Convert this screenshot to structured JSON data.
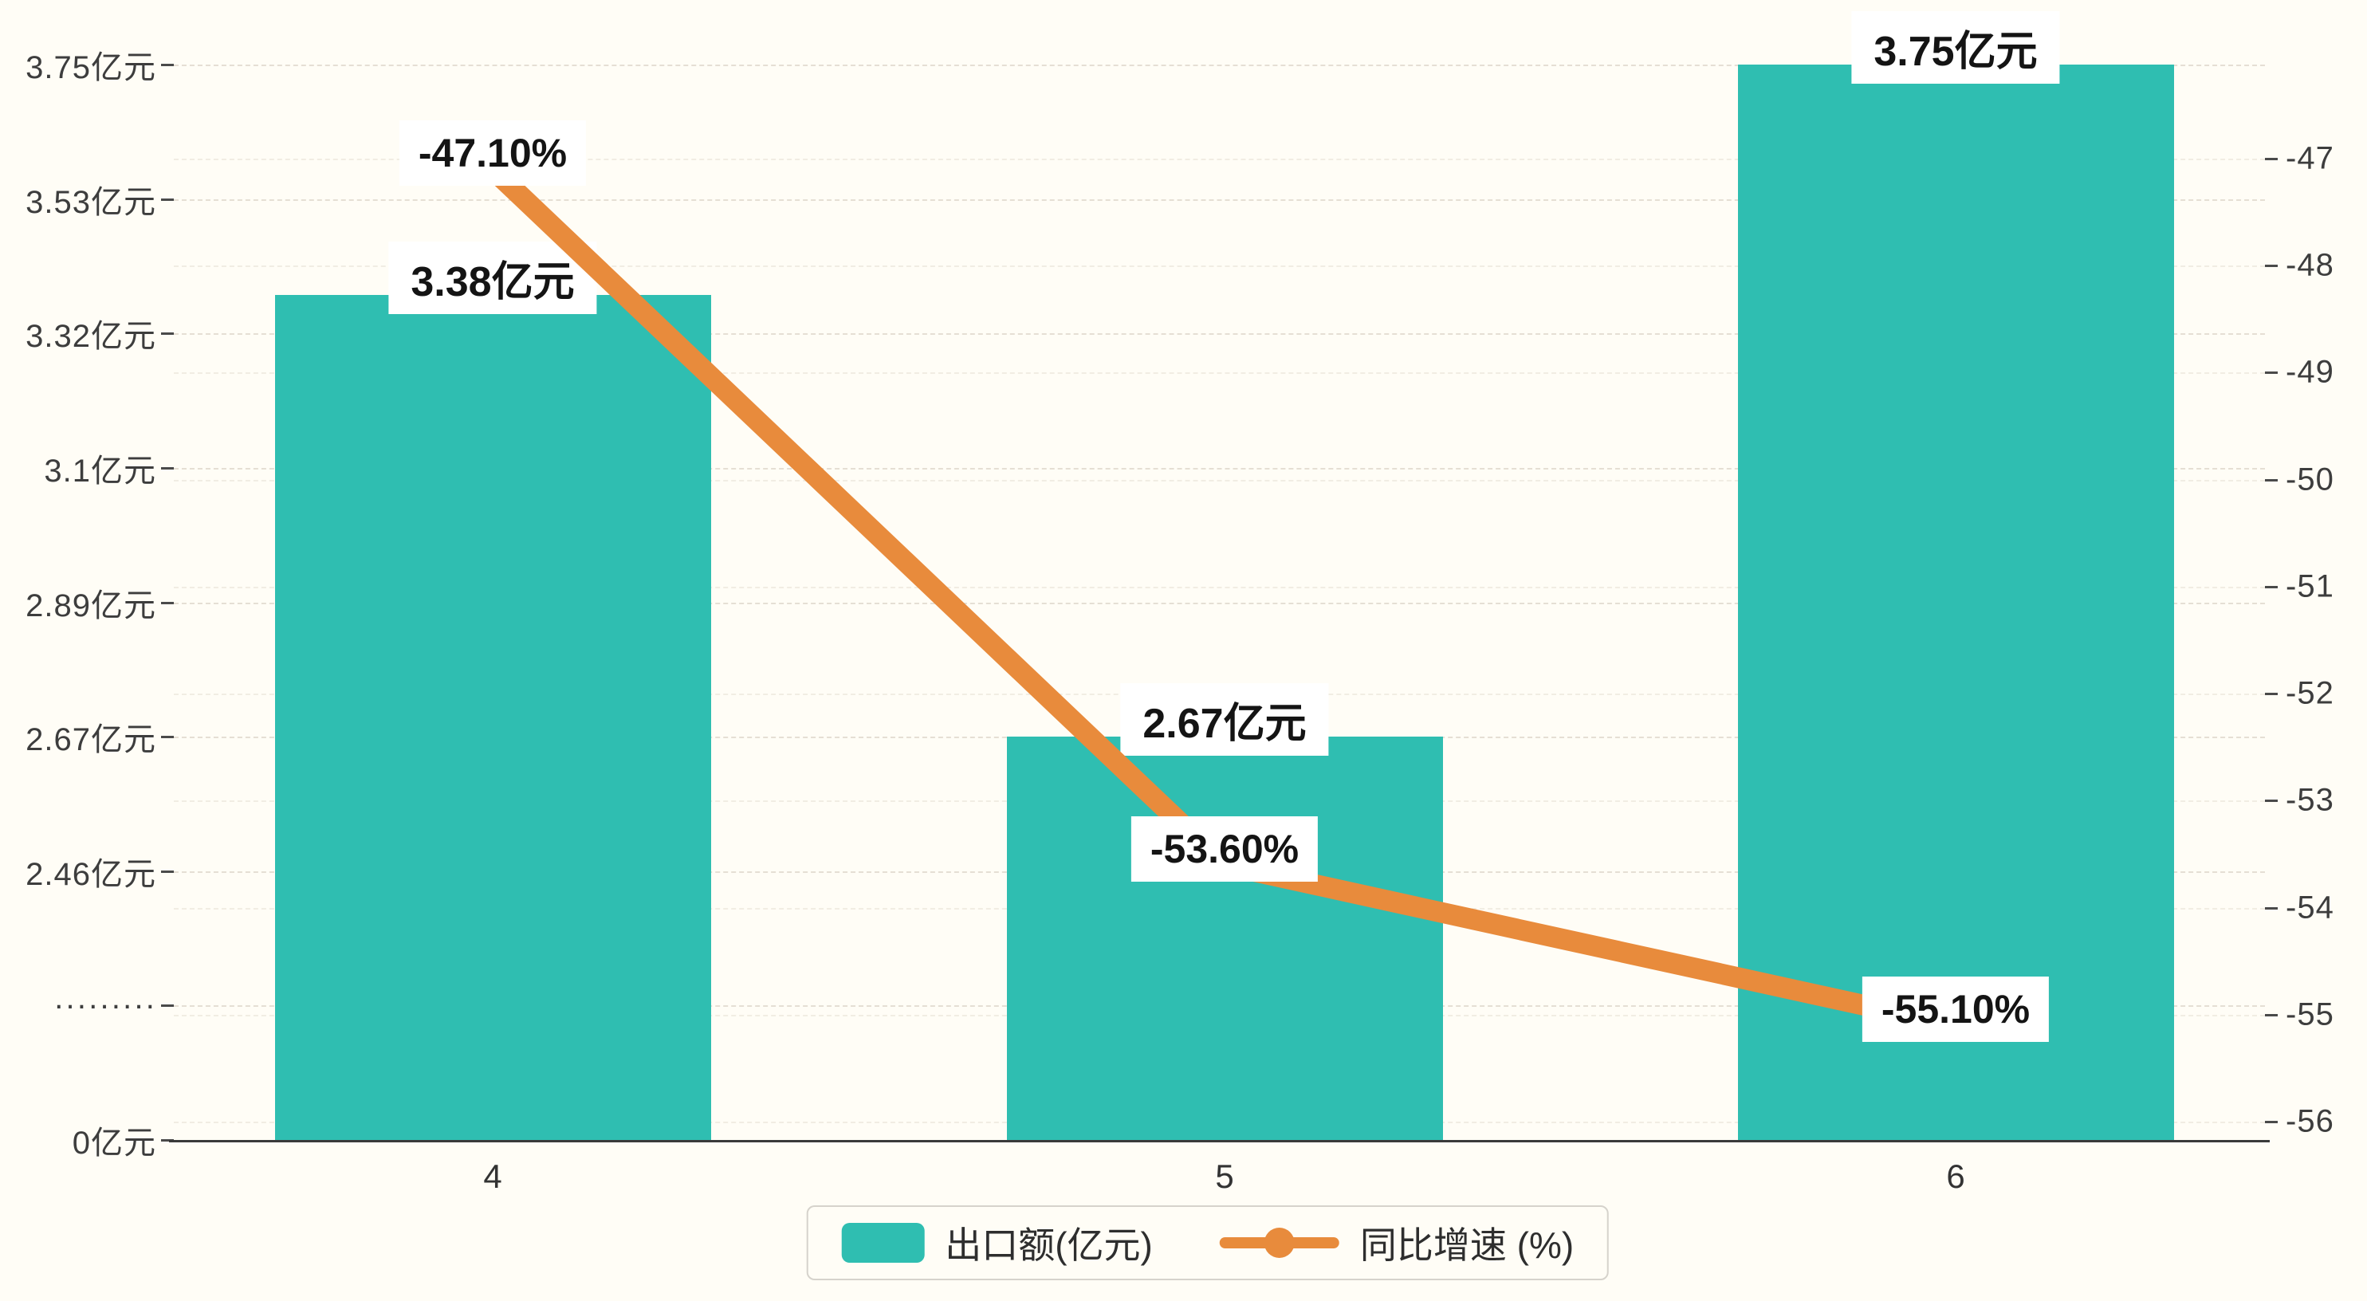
{
  "chart_data": {
    "type": "bar+line",
    "categories": [
      "4",
      "5",
      "6"
    ],
    "series": [
      {
        "name": "出口额(亿元)",
        "type": "bar",
        "axis": "left",
        "values": [
          3.38,
          2.67,
          3.75
        ],
        "labels": [
          "3.38亿元",
          "2.67亿元",
          "3.75亿元"
        ],
        "color": "#2FBEB1"
      },
      {
        "name": "同比增速 (%)",
        "type": "line",
        "axis": "right",
        "values": [
          -47.1,
          -53.6,
          -55.1
        ],
        "labels": [
          "-47.10%",
          "-53.60%",
          "-55.10%"
        ],
        "color": "#E88B3C"
      }
    ],
    "left_axis": {
      "tick_labels": [
        "3.75亿元",
        "3.53亿元",
        "3.32亿元",
        "3.1亿元",
        "2.89亿元",
        "2.67亿元",
        "2.46亿元",
        "·········",
        "0亿元"
      ],
      "tick_values": [
        3.75,
        3.53,
        3.32,
        3.1,
        2.89,
        2.67,
        2.46,
        null,
        0
      ],
      "broken": true
    },
    "right_axis": {
      "tick_labels": [
        "-47",
        "-48",
        "-49",
        "-50",
        "-51",
        "-52",
        "-53",
        "-54",
        "-55",
        "-56"
      ],
      "max": -47,
      "min": -56
    },
    "legend": [
      {
        "label": "出口额(亿元)",
        "marker": "bar",
        "color": "#2FBEB1"
      },
      {
        "label": "同比增速 (%)",
        "marker": "line",
        "color": "#E88B3C"
      }
    ],
    "title": "",
    "grid": "dashed-faint",
    "colors": {
      "bar": "#2FBEB1",
      "line": "#E88B3C",
      "background": "#fffdf6",
      "label_background": "#ffffff",
      "axis_text": "#3d3d3d"
    },
    "legend_position": "bottom-center"
  }
}
